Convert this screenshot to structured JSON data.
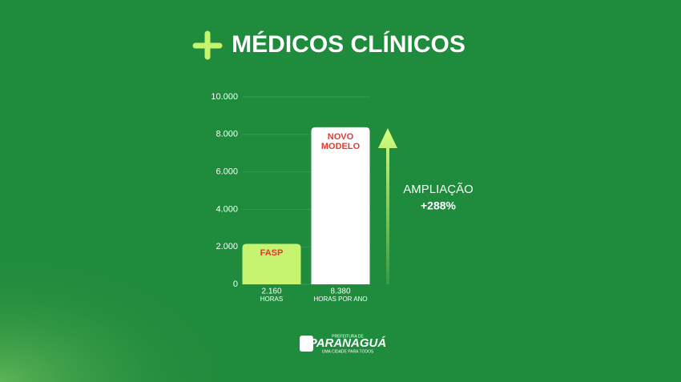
{
  "chart_data": {
    "type": "bar",
    "title": "MÉDICOS CLÍNICOS",
    "categories": [
      "FASP",
      "NOVO MODELO"
    ],
    "values": [
      2160,
      8380
    ],
    "value_labels": [
      "2.160",
      "8.380"
    ],
    "units": [
      "HORAS",
      "HORAS POR ANO"
    ],
    "colors": [
      "#c6f46f",
      "#ffffff"
    ],
    "label_color": "#e53935",
    "ylim": [
      0,
      10000
    ],
    "yticks": [
      0,
      {
        "value": 2000,
        "label": "2.000"
      },
      {
        "value": 4000,
        "label": "4.000"
      },
      {
        "value": 6000,
        "label": "6.000"
      },
      {
        "value": 8000,
        "label": "8.000"
      },
      {
        "value": 10000,
        "label": "10.000"
      }
    ],
    "grid": true,
    "annotation": {
      "text": "AMPLIAÇÃO",
      "highlight": "+288%"
    }
  },
  "logo": {
    "top": "PREFEITURA DE",
    "name": "PARANAGUÁ",
    "tagline": "UMA CIDADE PARA TODOS"
  }
}
